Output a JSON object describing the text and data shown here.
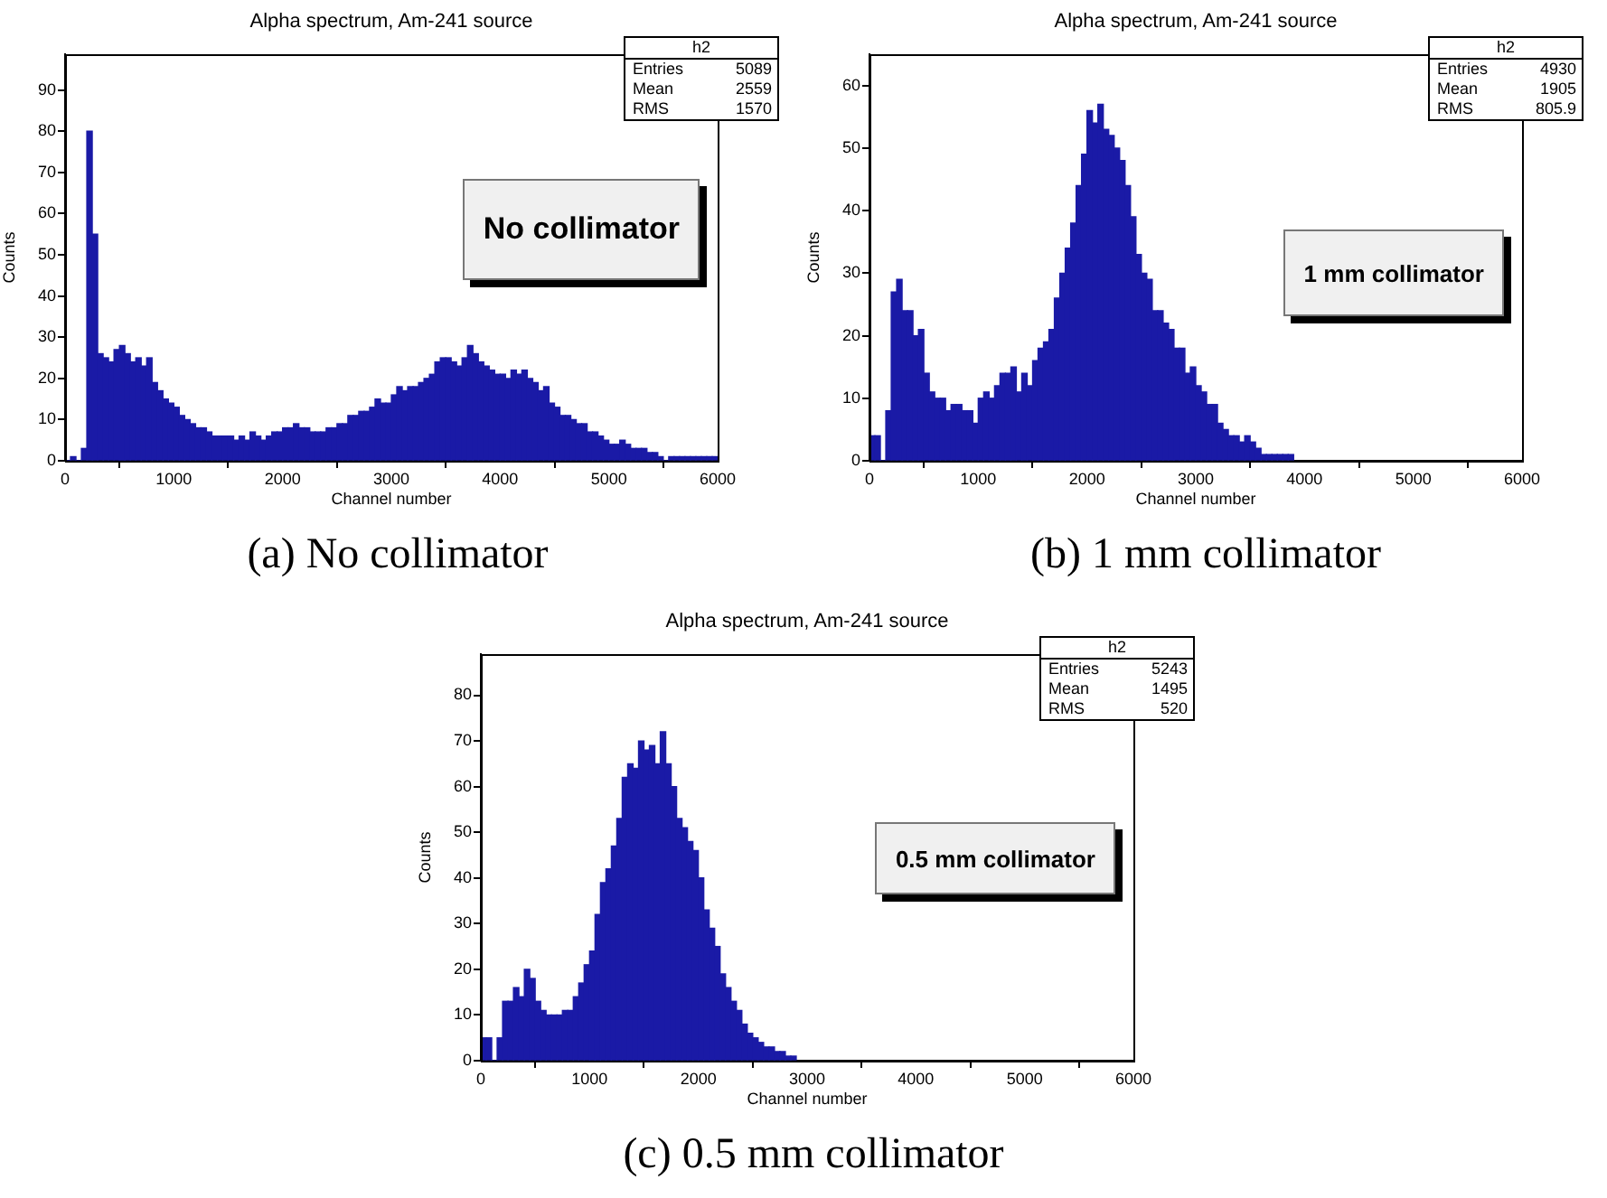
{
  "chart_data": [
    {
      "type": "histogram",
      "title": "Alpha spectrum, Am-241 source",
      "xlabel": "Channel number",
      "ylabel": "Counts",
      "color": "#1a1aa6",
      "bins": [
        0,
        50,
        100,
        150,
        200,
        250,
        300,
        350,
        400,
        450,
        500,
        550,
        600,
        650,
        700,
        750,
        800,
        850,
        900,
        950,
        1000,
        1050,
        1100,
        1150,
        1200,
        1250,
        1300,
        1350,
        1400,
        1450,
        1500,
        1550,
        1600,
        1650,
        1700,
        1750,
        1800,
        1850,
        1900,
        1950,
        2000,
        2050,
        2100,
        2150,
        2200,
        2250,
        2300,
        2350,
        2400,
        2450,
        2500,
        2550,
        2600,
        2650,
        2700,
        2750,
        2800,
        2850,
        2900,
        2950,
        3000,
        3050,
        3100,
        3150,
        3200,
        3250,
        3300,
        3350,
        3400,
        3450,
        3500,
        3550,
        3600,
        3650,
        3700,
        3750,
        3800,
        3850,
        3900,
        3950,
        4000,
        4050,
        4100,
        4150,
        4200,
        4250,
        4300,
        4350,
        4400,
        4450,
        4500,
        4550,
        4600,
        4650,
        4700,
        4750,
        4800,
        4850,
        4900,
        4950,
        5000,
        5050,
        5100,
        5150,
        5200,
        5250,
        5300,
        5350,
        5400,
        5450,
        5500,
        5550,
        5600,
        5650,
        5700,
        5750,
        5800,
        5850,
        5900,
        5950,
        6000
      ],
      "values": [
        0,
        1,
        0,
        3,
        80,
        55,
        26,
        25,
        24,
        27,
        28,
        26,
        24,
        25,
        23,
        25,
        19,
        17,
        15,
        14,
        13,
        11,
        10,
        9,
        8,
        8,
        7,
        6,
        6,
        6,
        6,
        5,
        6,
        5,
        7,
        6,
        5,
        6,
        7,
        7,
        8,
        8,
        9,
        8,
        8,
        7,
        7,
        7,
        8,
        8,
        9,
        9,
        11,
        11,
        12,
        12,
        13,
        15,
        14,
        14,
        16,
        18,
        17,
        18,
        18,
        19,
        20,
        21,
        24,
        25,
        25,
        24,
        23,
        25,
        28,
        26,
        24,
        23,
        22,
        21,
        21,
        20,
        22,
        21,
        22,
        20,
        19,
        17,
        18,
        14,
        13,
        11,
        11,
        10,
        9,
        9,
        7,
        7,
        6,
        5,
        4,
        4,
        5,
        4,
        3,
        3,
        3,
        2,
        2,
        1,
        0,
        1,
        1,
        1,
        1,
        1,
        1,
        1,
        1,
        1
      ],
      "xlim": [
        0,
        6000
      ],
      "xticks": [
        0,
        1000,
        2000,
        3000,
        4000,
        5000,
        6000
      ],
      "ylim": [
        0,
        98.7
      ],
      "yticks": [
        0,
        10,
        20,
        30,
        40,
        50,
        60,
        70,
        80,
        90
      ],
      "annotations": [
        "h2",
        "Entries",
        "5089",
        "Mean",
        "2559",
        "RMS",
        "1570",
        "No collimator",
        "(a) No collimator"
      ]
    },
    {
      "type": "histogram",
      "title": "Alpha spectrum, Am-241 source",
      "xlabel": "Channel number",
      "ylabel": "Counts",
      "color": "#1a1aa6",
      "bins": [
        0,
        50,
        100,
        150,
        200,
        250,
        300,
        350,
        400,
        450,
        500,
        550,
        600,
        650,
        700,
        750,
        800,
        850,
        900,
        950,
        1000,
        1050,
        1100,
        1150,
        1200,
        1250,
        1300,
        1350,
        1400,
        1450,
        1500,
        1550,
        1600,
        1650,
        1700,
        1750,
        1800,
        1850,
        1900,
        1950,
        2000,
        2050,
        2100,
        2150,
        2200,
        2250,
        2300,
        2350,
        2400,
        2450,
        2500,
        2550,
        2600,
        2650,
        2700,
        2750,
        2800,
        2850,
        2900,
        2950,
        3000,
        3050,
        3100,
        3150,
        3200,
        3250,
        3300,
        3350,
        3400,
        3450,
        3500,
        3550,
        3600,
        3650,
        3700,
        3750,
        3800,
        3850,
        3900
      ],
      "values": [
        4,
        4,
        0,
        8,
        27,
        29,
        24,
        24,
        20,
        21,
        14,
        11,
        10,
        10,
        8,
        9,
        9,
        8,
        8,
        6,
        10,
        11,
        10,
        12,
        14,
        14,
        15,
        11,
        14,
        12,
        16,
        18,
        19,
        21,
        26,
        30,
        34,
        38,
        44,
        49,
        56,
        54,
        57,
        53,
        52,
        50,
        48,
        44,
        39,
        33,
        30,
        29,
        24,
        24,
        22,
        21,
        18,
        18,
        14,
        15,
        12,
        11,
        9,
        9,
        6,
        5,
        4,
        4,
        3,
        4,
        3,
        2,
        1,
        1,
        1,
        1,
        1,
        1
      ],
      "xlim": [
        0,
        6000
      ],
      "xticks": [
        0,
        1000,
        2000,
        3000,
        4000,
        5000,
        6000
      ],
      "ylim": [
        0,
        65
      ],
      "yticks": [
        0,
        10,
        20,
        30,
        40,
        50,
        60
      ],
      "annotations": [
        "h2",
        "Entries",
        "4930",
        "Mean",
        "1905",
        "RMS",
        "805.9",
        "1 mm collimator",
        "(b) 1 mm collimator"
      ]
    },
    {
      "type": "histogram",
      "title": "Alpha spectrum, Am-241 source",
      "xlabel": "Channel number",
      "ylabel": "Counts",
      "color": "#1a1aa6",
      "bins": [
        0,
        50,
        100,
        150,
        200,
        250,
        300,
        350,
        400,
        450,
        500,
        550,
        600,
        650,
        700,
        750,
        800,
        850,
        900,
        950,
        1000,
        1050,
        1100,
        1150,
        1200,
        1250,
        1300,
        1350,
        1400,
        1450,
        1500,
        1550,
        1600,
        1650,
        1700,
        1750,
        1800,
        1850,
        1900,
        1950,
        2000,
        2050,
        2100,
        2150,
        2200,
        2250,
        2300,
        2350,
        2400,
        2450,
        2500,
        2550,
        2600,
        2650,
        2700,
        2750,
        2800,
        2850,
        2900
      ],
      "values": [
        5,
        5,
        0,
        5,
        13,
        13,
        16,
        14,
        20,
        18,
        13,
        11,
        10,
        10,
        10,
        11,
        11,
        14,
        17,
        21,
        24,
        32,
        39,
        42,
        47,
        53,
        62,
        65,
        64,
        70,
        68,
        69,
        65,
        72,
        65,
        60,
        53,
        51,
        48,
        46,
        40,
        33,
        29,
        25,
        19,
        16,
        13,
        11,
        8,
        6,
        5,
        4,
        3,
        3,
        2,
        2,
        1,
        1
      ],
      "xlim": [
        0,
        6000
      ],
      "xticks": [
        0,
        1000,
        2000,
        3000,
        4000,
        5000,
        6000
      ],
      "ylim": [
        0,
        89
      ],
      "yticks": [
        0,
        10,
        20,
        30,
        40,
        50,
        60,
        70,
        80
      ],
      "annotations": [
        "h2",
        "Entries",
        "5243",
        "Mean",
        "1495",
        "RMS",
        "520",
        "0.5 mm collimator",
        "(c) 0.5 mm collimator"
      ]
    }
  ]
}
